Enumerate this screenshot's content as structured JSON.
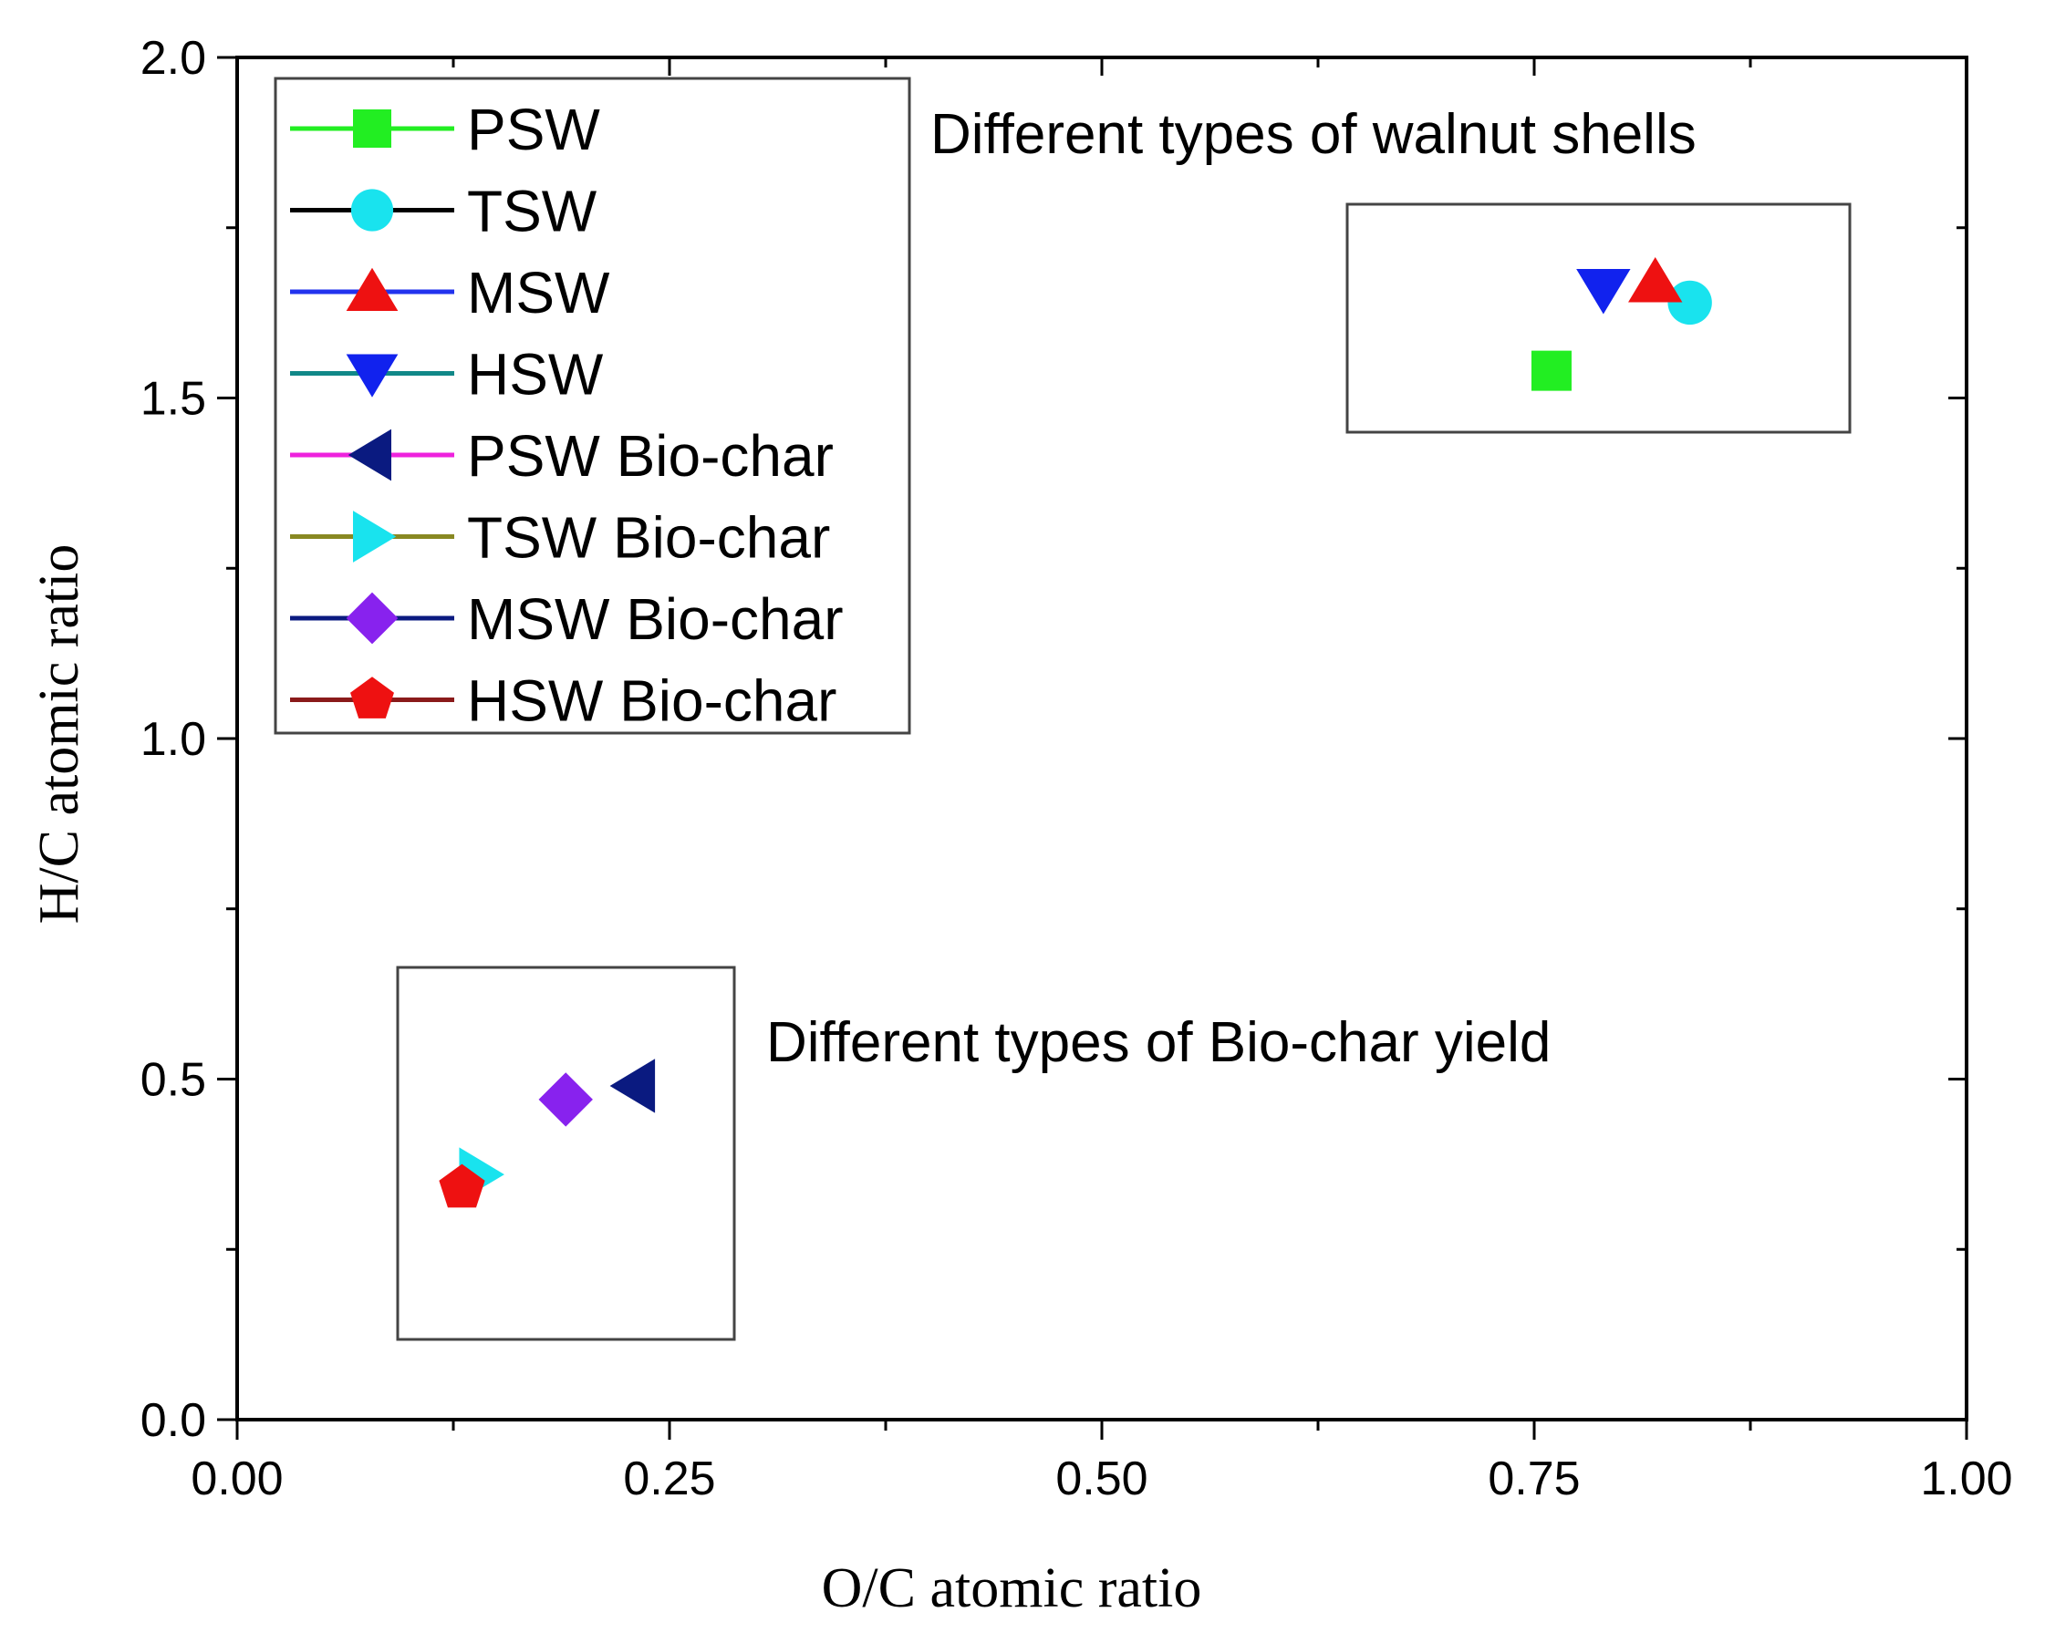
{
  "chart_data": {
    "type": "scatter",
    "title": "",
    "xlabel": "O/C atomic ratio",
    "ylabel": "H/C atomic ratio",
    "xlim": [
      0,
      1
    ],
    "ylim": [
      0,
      2
    ],
    "x_ticks": [
      "0.00",
      "0.25",
      "0.50",
      "0.75",
      "1.00"
    ],
    "y_ticks": [
      "0.0",
      "0.5",
      "1.0",
      "1.5",
      "2.0"
    ],
    "grid": false,
    "legend_position": "top-left",
    "series": [
      {
        "name": "PSW",
        "marker": "square",
        "color": "#22ee22",
        "line_color": "#22ee22",
        "x": 0.76,
        "y": 1.54
      },
      {
        "name": "TSW",
        "marker": "circle",
        "color": "#19e3ee",
        "line_color": "#000000",
        "x": 0.84,
        "y": 1.64
      },
      {
        "name": "MSW",
        "marker": "triangle-up",
        "color": "#ee1111",
        "line_color": "#2233ee",
        "x": 0.82,
        "y": 1.67
      },
      {
        "name": "HSW",
        "marker": "triangle-down",
        "color": "#1122ee",
        "line_color": "#118888",
        "x": 0.79,
        "y": 1.66
      },
      {
        "name": "PSW Bio-char",
        "marker": "triangle-left",
        "color": "#0a1a80",
        "line_color": "#ee22dd",
        "x": 0.23,
        "y": 0.49
      },
      {
        "name": "TSW Bio-char",
        "marker": "triangle-right",
        "color": "#19e3ee",
        "line_color": "#888822",
        "x": 0.14,
        "y": 0.36
      },
      {
        "name": "MSW Bio-char",
        "marker": "diamond",
        "color": "#8822ee",
        "line_color": "#0a1a80",
        "x": 0.19,
        "y": 0.47
      },
      {
        "name": "HSW Bio-char",
        "marker": "pentagon",
        "color": "#ee1111",
        "line_color": "#8a1a1a",
        "x": 0.13,
        "y": 0.34
      }
    ],
    "annotations": [
      {
        "text": "Different types of walnut shells"
      },
      {
        "text": "Different types of Bio-char yield"
      }
    ]
  }
}
